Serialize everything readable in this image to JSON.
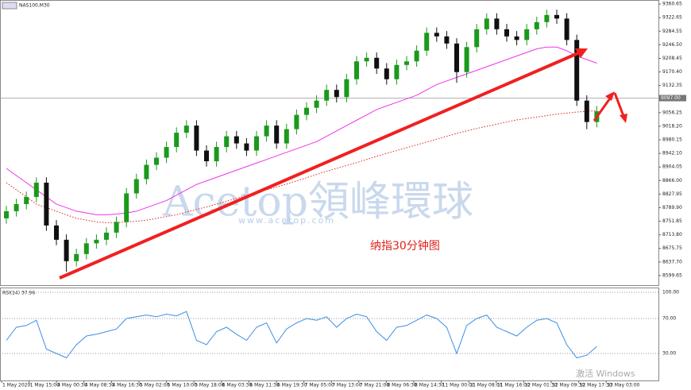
{
  "chart_data": [
    {
      "type": "candlestick",
      "title": "NAS100,M30",
      "up_color": "#1a9a1a",
      "down_color": "#101010",
      "open": [
        8760,
        8780,
        8800,
        8820,
        8860,
        8740,
        8700,
        8640,
        8660,
        8690,
        8700,
        8720,
        8750,
        8830,
        8870,
        8910,
        8930,
        8960,
        9000,
        9020,
        8950,
        8920,
        8960,
        8990,
        8970,
        8950,
        8990,
        9020,
        8970,
        9010,
        9050,
        9070,
        9090,
        9120,
        9100,
        9150,
        9200,
        9210,
        9180,
        9150,
        9190,
        9200,
        9230,
        9280,
        9270,
        9250,
        9170,
        9240,
        9290,
        9320,
        9290,
        9270,
        9260,
        9290,
        9310,
        9330,
        9320,
        9260,
        9090,
        9030
      ],
      "high": [
        8795,
        8815,
        8835,
        8875,
        8875,
        8755,
        8715,
        8675,
        8705,
        8715,
        8735,
        8765,
        8845,
        8885,
        8925,
        8945,
        8975,
        9015,
        9035,
        9035,
        8965,
        8975,
        9005,
        9005,
        8985,
        9005,
        9035,
        9035,
        9025,
        9065,
        9085,
        9105,
        9135,
        9135,
        9165,
        9215,
        9225,
        9225,
        9195,
        9205,
        9215,
        9245,
        9295,
        9295,
        9285,
        9265,
        9255,
        9305,
        9335,
        9335,
        9305,
        9285,
        9305,
        9325,
        9345,
        9345,
        9335,
        9275,
        9105,
        9075
      ],
      "low": [
        8745,
        8765,
        8785,
        8805,
        8725,
        8685,
        8610,
        8625,
        8645,
        8675,
        8685,
        8705,
        8735,
        8815,
        8855,
        8895,
        8915,
        8945,
        8985,
        8935,
        8905,
        8905,
        8945,
        8955,
        8935,
        8935,
        8975,
        8955,
        8955,
        8995,
        9035,
        9055,
        9075,
        9085,
        9085,
        9135,
        9185,
        9165,
        9135,
        9135,
        9175,
        9185,
        9215,
        9255,
        9235,
        9140,
        9155,
        9225,
        9275,
        9275,
        9255,
        9245,
        9245,
        9275,
        9295,
        9305,
        9245,
        9075,
        9010,
        9015
      ],
      "close": [
        8780,
        8800,
        8820,
        8860,
        8740,
        8700,
        8640,
        8660,
        8690,
        8700,
        8720,
        8750,
        8830,
        8870,
        8910,
        8930,
        8960,
        9000,
        9020,
        8950,
        8920,
        8960,
        8990,
        8970,
        8950,
        8990,
        9020,
        8970,
        9010,
        9050,
        9070,
        9090,
        9120,
        9100,
        9150,
        9200,
        9210,
        9180,
        9150,
        9190,
        9200,
        9230,
        9280,
        9270,
        9250,
        9170,
        9240,
        9290,
        9320,
        9290,
        9270,
        9260,
        9290,
        9310,
        9330,
        9320,
        9260,
        9090,
        9030,
        9060
      ],
      "series": [
        {
          "color": "#ee33ee",
          "style": "solid",
          "values": [
            8900,
            8880,
            8860,
            8840,
            8820,
            8800,
            8790,
            8780,
            8775,
            8770,
            8770,
            8772,
            8775,
            8780,
            8790,
            8800,
            8810,
            8825,
            8840,
            8855,
            8865,
            8875,
            8885,
            8895,
            8905,
            8915,
            8925,
            8935,
            8945,
            8955,
            8965,
            8975,
            8990,
            9005,
            9020,
            9035,
            9050,
            9065,
            9075,
            9085,
            9095,
            9105,
            9120,
            9135,
            9145,
            9155,
            9165,
            9175,
            9185,
            9195,
            9205,
            9215,
            9225,
            9235,
            9240,
            9240,
            9230,
            9215,
            9205,
            9195
          ]
        },
        {
          "color": "#e02020",
          "style": "dotted",
          "values": [
            8860,
            8840,
            8820,
            8800,
            8790,
            8780,
            8770,
            8760,
            8755,
            8750,
            8748,
            8748,
            8750,
            8752,
            8755,
            8760,
            8765,
            8770,
            8778,
            8785,
            8792,
            8800,
            8808,
            8816,
            8824,
            8832,
            8840,
            8848,
            8856,
            8865,
            8874,
            8883,
            8892,
            8900,
            8908,
            8916,
            8925,
            8934,
            8942,
            8950,
            8958,
            8966,
            8974,
            8982,
            8990,
            8998,
            9005,
            9012,
            9018,
            9024,
            9030,
            9036,
            9040,
            9044,
            9048,
            9052,
            9055,
            9058,
            9060,
            9062
          ]
        }
      ],
      "ylim": [
        8575,
        9372
      ],
      "yticks": [
        9360.65,
        9322.65,
        9284.55,
        {
          "value": 9246.5,
          "label": "9246.50"
        },
        9208.45,
        {
          "value": 9170.4,
          "label": "9170.40"
        },
        9132.35,
        9056.25,
        {
          "value": 9018.2,
          "label": "9018.20"
        },
        8980.15,
        {
          "value": 8942.1,
          "label": "8942.10"
        },
        8904.05,
        {
          "value": 8866,
          "label": "8866.00"
        },
        8827.95,
        {
          "value": 8789.9,
          "label": "8789.90"
        },
        8751.85,
        {
          "value": 8713.8,
          "label": "8713.80"
        },
        8675.75,
        {
          "value": 8637.7,
          "label": "8637.70"
        },
        8599.65
      ],
      "current_price": {
        "value": 9097,
        "label": "9097.00"
      },
      "x_labels": [
        "1 May 2020",
        "1 May 15:00",
        "4 May 00:30",
        "4 May 08:30",
        "4 May 16:30",
        "5 May 02:00",
        "5 May 10:00",
        "5 May 18:00",
        "6 May 03:30",
        "6 May 11:30",
        "6 May 19:30",
        "7 May 05:00",
        "7 May 13:00",
        "7 May 21:00",
        "8 May 06:30",
        "8 May 14:30",
        "11 May 00:00",
        "11 May 08:00",
        "11 May 16:00",
        "12 May 01:30",
        "12 May 09:30",
        "12 May 17:30",
        "13 May 03:00"
      ],
      "watermark": "Acetop領峰環球",
      "watermark_url": "www.acetop.com",
      "annotation": "纳指30分钟图",
      "os_notice": "激活 Windows"
    },
    {
      "type": "line",
      "title": "RSI(14) 37.96",
      "color": "#3a8ee6",
      "values": [
        45,
        60,
        62,
        68,
        35,
        30,
        25,
        40,
        50,
        52,
        55,
        58,
        70,
        72,
        74,
        72,
        75,
        73,
        78,
        45,
        40,
        55,
        60,
        52,
        45,
        60,
        65,
        42,
        58,
        65,
        70,
        68,
        72,
        60,
        70,
        75,
        72,
        55,
        45,
        60,
        62,
        68,
        74,
        70,
        60,
        30,
        62,
        70,
        74,
        60,
        55,
        50,
        60,
        68,
        70,
        65,
        40,
        25,
        28,
        38
      ],
      "ylim": [
        0,
        100
      ],
      "yticks": [
        {
          "value": 100,
          "label": "100.00"
        },
        {
          "value": 70,
          "label": "70.00"
        },
        {
          "value": 30,
          "label": "30.00"
        }
      ]
    }
  ]
}
